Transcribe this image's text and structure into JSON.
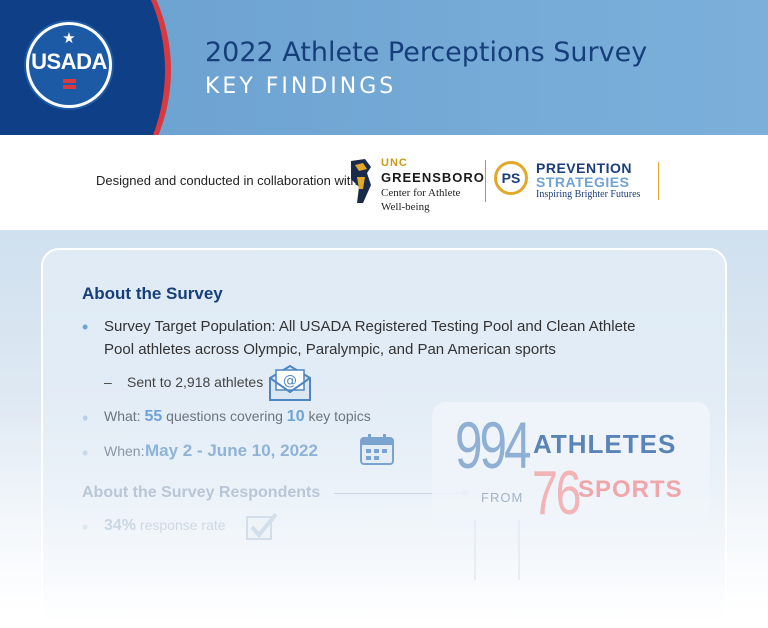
{
  "header": {
    "logo_text": "USADA",
    "title": "2022 Athlete Perceptions Survey",
    "subtitle": "KEY FINDINGS"
  },
  "collab": {
    "text": "Designed and conducted in collaboration with:",
    "uncg": {
      "line1": "UNC",
      "line2": "GREENSBORO",
      "line3": "Center for Athlete",
      "line4": "Well-being"
    },
    "ps": {
      "mark": "PS",
      "line1": "PREVENTION",
      "line2": "STRATEGIES",
      "line3": "Inspiring Brighter Futures"
    }
  },
  "about": {
    "heading": "About the Survey",
    "target": "Survey Target Population: All USADA Registered Testing Pool and Clean Athlete Pool athletes across Olympic, Paralympic, and Pan American sports",
    "sent": "Sent to 2,918 athletes",
    "what_label": "What:",
    "what_questions": "55",
    "what_mid": "questions covering",
    "what_topics": "10",
    "what_end": "key topics",
    "when_label": "When:",
    "when_value": "May 2 - June 10, 2022"
  },
  "respondents": {
    "heading": "About the Survey Respondents",
    "rate_value": "34%",
    "rate_label": "response rate"
  },
  "stats": {
    "athletes_count": "994",
    "athletes_label": "ATHLETES",
    "from": "FROM",
    "sports_count": "76",
    "sports_label": "SPORTS"
  },
  "colors": {
    "navy": "#0f3f86",
    "header_blue": "#7cb0db",
    "accent_red": "#d9393f",
    "light_blue": "#6fa3d3",
    "gold": "#e2a82a"
  },
  "icons": [
    "usada-logo",
    "uncg-spartan-icon",
    "prevention-strategies-logo",
    "email-icon",
    "calendar-icon",
    "checkmark-icon"
  ]
}
